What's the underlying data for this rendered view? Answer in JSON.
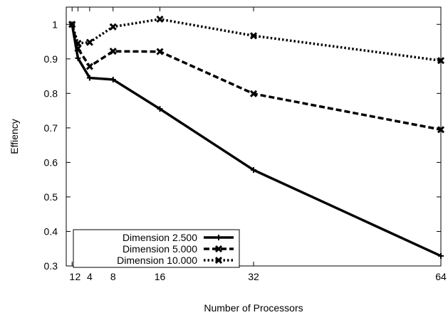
{
  "chart_data": {
    "type": "line",
    "title": "",
    "xlabel": "Number of Processors",
    "ylabel": "Effiency",
    "xlim": [
      0,
      64
    ],
    "ylim": [
      0.3,
      1.05
    ],
    "xticks": [
      1,
      2,
      4,
      8,
      16,
      32,
      64
    ],
    "xtick_labels": [
      "1",
      "2",
      "4",
      "8",
      "16",
      "32",
      "64"
    ],
    "yticks": [
      0.3,
      0.4,
      0.5,
      0.6,
      0.7,
      0.8,
      0.9,
      1.0
    ],
    "ytick_labels": [
      "0.3",
      "0.4",
      "0.5",
      "0.6",
      "0.7",
      "0.8",
      "0.9",
      "1"
    ],
    "grid": false,
    "legend_position": "bottom-left",
    "x": [
      1,
      2,
      4,
      8,
      16,
      32,
      64
    ],
    "series": [
      {
        "name": "Dimension 2.500",
        "style": "solid",
        "marker": "plus",
        "color": "#000000",
        "values": [
          1.0,
          0.902,
          0.845,
          0.84,
          0.755,
          0.578,
          0.329
        ]
      },
      {
        "name": "Dimension 5.000",
        "style": "dashed",
        "marker": "x",
        "color": "#000000",
        "values": [
          1.0,
          0.93,
          0.878,
          0.922,
          0.921,
          0.799,
          0.695
        ]
      },
      {
        "name": "Dimension 10.000",
        "style": "dotted",
        "marker": "x",
        "color": "#000000",
        "values": [
          1.0,
          0.945,
          0.948,
          0.993,
          1.015,
          0.967,
          0.895
        ]
      }
    ]
  }
}
